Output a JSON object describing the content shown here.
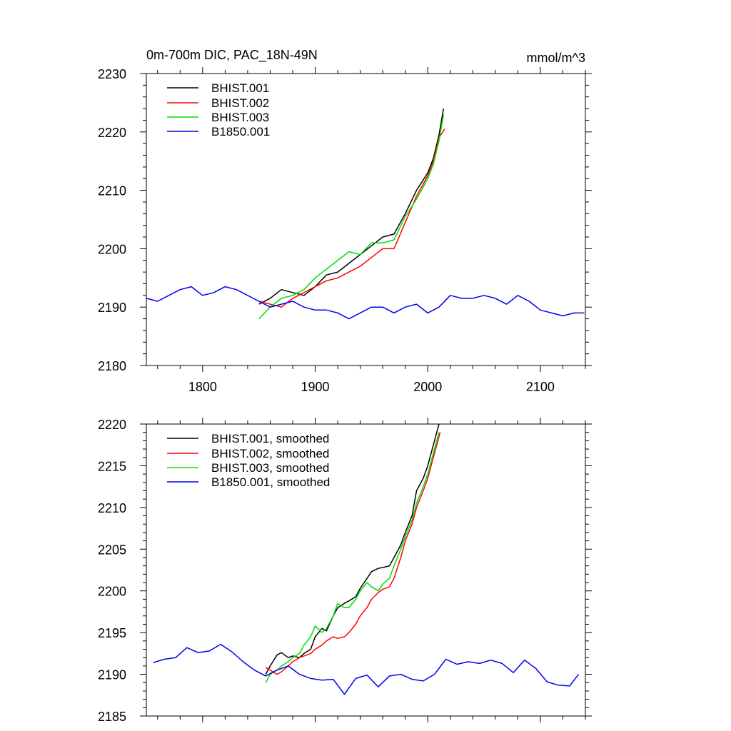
{
  "chart_data": [
    {
      "type": "line",
      "title": "0m-700m DIC, PAC_18N-49N",
      "units": "mmol/m^3",
      "xlim": [
        1750,
        2140
      ],
      "ylim": [
        2180,
        2230
      ],
      "x_ticks": [
        1800,
        1900,
        2000,
        2100
      ],
      "x_tick_labels": [
        "1800",
        "1900",
        "2000",
        "2100"
      ],
      "y_ticks": [
        2180,
        2190,
        2200,
        2210,
        2220,
        2230
      ],
      "y_tick_labels": [
        "2180",
        "2190",
        "2200",
        "2210",
        "2220",
        "2230"
      ],
      "grid": false,
      "legend_position": "top-left",
      "series": [
        {
          "name": "BHIST.001",
          "color": "#000000",
          "x": [
            1850,
            1860,
            1870,
            1880,
            1890,
            1900,
            1910,
            1920,
            1930,
            1940,
            1950,
            1960,
            1970,
            1980,
            1990,
            2000,
            2005,
            2010,
            2014
          ],
          "y": [
            2190.5,
            2191.5,
            2193.0,
            2192.5,
            2192.0,
            2193.5,
            2195.5,
            2196.0,
            2197.5,
            2199.0,
            2200.5,
            2202.0,
            2202.5,
            2206.0,
            2210.0,
            2213.0,
            2215.5,
            2219.5,
            2224.0
          ]
        },
        {
          "name": "BHIST.002",
          "color": "#ff0000",
          "x": [
            1850,
            1860,
            1870,
            1880,
            1890,
            1900,
            1910,
            1920,
            1930,
            1940,
            1950,
            1960,
            1970,
            1980,
            1990,
            2000,
            2005,
            2010,
            2015
          ],
          "y": [
            2191.0,
            2190.5,
            2190.0,
            2191.5,
            2192.5,
            2193.5,
            2194.5,
            2195.0,
            2196.0,
            2197.0,
            2198.5,
            2200.0,
            2200.0,
            2204.5,
            2209.0,
            2212.5,
            2215.0,
            2219.0,
            2220.5
          ]
        },
        {
          "name": "BHIST.003",
          "color": "#00dd00",
          "x": [
            1850,
            1860,
            1870,
            1880,
            1890,
            1900,
            1910,
            1920,
            1930,
            1940,
            1950,
            1960,
            1970,
            1980,
            1990,
            2000,
            2005,
            2010,
            2014
          ],
          "y": [
            2188.0,
            2190.0,
            2191.5,
            2192.0,
            2193.0,
            2195.0,
            2196.5,
            2198.0,
            2199.5,
            2199.0,
            2201.0,
            2201.0,
            2201.5,
            2205.5,
            2208.5,
            2212.0,
            2214.5,
            2218.5,
            2223.0
          ]
        },
        {
          "name": "B1850.001",
          "color": "#0000ee",
          "x": [
            1750,
            1760,
            1770,
            1780,
            1790,
            1800,
            1810,
            1820,
            1830,
            1840,
            1850,
            1860,
            1870,
            1880,
            1890,
            1900,
            1910,
            1920,
            1930,
            1940,
            1950,
            1960,
            1970,
            1980,
            1990,
            2000,
            2010,
            2020,
            2030,
            2040,
            2050,
            2060,
            2070,
            2080,
            2090,
            2100,
            2110,
            2120,
            2130,
            2139
          ],
          "y": [
            2191.5,
            2191.0,
            2192.0,
            2193.0,
            2193.5,
            2192.0,
            2192.5,
            2193.5,
            2193.0,
            2192.0,
            2191.0,
            2190.0,
            2190.5,
            2191.0,
            2190.0,
            2189.5,
            2189.5,
            2189.0,
            2188.0,
            2189.0,
            2190.0,
            2190.0,
            2189.0,
            2190.0,
            2190.5,
            2189.0,
            2190.0,
            2192.0,
            2191.5,
            2191.5,
            2192.0,
            2191.5,
            2190.5,
            2192.0,
            2191.0,
            2189.5,
            2189.0,
            2188.5,
            2189.0,
            2189.0
          ]
        }
      ]
    },
    {
      "type": "line",
      "xlim": [
        1750,
        2140
      ],
      "ylim": [
        2185,
        2220
      ],
      "x_ticks": [
        1800,
        1900,
        2000,
        2100
      ],
      "x_tick_labels": [],
      "y_ticks": [
        2185,
        2190,
        2195,
        2200,
        2205,
        2210,
        2215,
        2220
      ],
      "y_tick_labels": [
        "2185",
        "2190",
        "2195",
        "2200",
        "2205",
        "2210",
        "2215",
        "2220"
      ],
      "grid": false,
      "legend_position": "top-left",
      "series": [
        {
          "name": "BHIST.001, smoothed",
          "color": "#000000",
          "x": [
            1856,
            1860,
            1866,
            1870,
            1876,
            1880,
            1886,
            1890,
            1896,
            1900,
            1906,
            1910,
            1916,
            1920,
            1926,
            1930,
            1936,
            1940,
            1946,
            1950,
            1956,
            1960,
            1966,
            1970,
            1976,
            1980,
            1986,
            1990,
            1996,
            2000,
            2004,
            2008,
            2010
          ],
          "y": [
            2190.0,
            2191.0,
            2192.3,
            2192.6,
            2192.0,
            2192.2,
            2192.0,
            2192.5,
            2193.0,
            2194.5,
            2195.5,
            2195.2,
            2197.0,
            2198.0,
            2198.5,
            2198.8,
            2199.3,
            2200.3,
            2201.5,
            2202.3,
            2202.7,
            2202.8,
            2203.0,
            2204.0,
            2205.5,
            2207.0,
            2209.0,
            2212.0,
            2213.5,
            2215.0,
            2217.0,
            2219.0,
            2220.0
          ]
        },
        {
          "name": "BHIST.002, smoothed",
          "color": "#ff0000",
          "x": [
            1856,
            1860,
            1866,
            1870,
            1876,
            1880,
            1886,
            1890,
            1896,
            1900,
            1906,
            1910,
            1916,
            1920,
            1926,
            1930,
            1936,
            1940,
            1946,
            1950,
            1956,
            1960,
            1966,
            1970,
            1976,
            1980,
            1986,
            1990,
            1996,
            2000,
            2004,
            2008,
            2011
          ],
          "y": [
            2190.8,
            2190.5,
            2190.0,
            2190.3,
            2191.0,
            2191.5,
            2192.0,
            2192.2,
            2192.5,
            2193.0,
            2193.5,
            2194.0,
            2194.5,
            2194.3,
            2194.5,
            2195.0,
            2196.0,
            2197.0,
            2198.0,
            2199.0,
            2199.8,
            2200.2,
            2200.5,
            2201.5,
            2204.0,
            2206.0,
            2208.0,
            2210.0,
            2212.0,
            2213.5,
            2215.5,
            2217.5,
            2219.0
          ]
        },
        {
          "name": "BHIST.003, smoothed",
          "color": "#00dd00",
          "x": [
            1856,
            1860,
            1866,
            1870,
            1876,
            1880,
            1886,
            1890,
            1896,
            1900,
            1906,
            1910,
            1916,
            1920,
            1926,
            1930,
            1936,
            1940,
            1946,
            1950,
            1956,
            1960,
            1966,
            1970,
            1976,
            1980,
            1986,
            1990,
            1996,
            2000,
            2004,
            2008,
            2010
          ],
          "y": [
            2189.0,
            2190.0,
            2190.5,
            2191.0,
            2191.5,
            2192.0,
            2192.5,
            2193.5,
            2194.5,
            2195.8,
            2195.0,
            2195.5,
            2197.0,
            2198.5,
            2198.0,
            2198.0,
            2199.0,
            2200.0,
            2201.0,
            2200.5,
            2200.0,
            2200.8,
            2201.5,
            2203.0,
            2205.0,
            2206.5,
            2208.5,
            2210.5,
            2212.5,
            2214.0,
            2216.0,
            2218.0,
            2219.0
          ]
        },
        {
          "name": "B1850.001, smoothed",
          "color": "#0000ee",
          "x": [
            1756,
            1766,
            1776,
            1786,
            1796,
            1806,
            1816,
            1826,
            1836,
            1846,
            1856,
            1866,
            1876,
            1886,
            1896,
            1906,
            1916,
            1926,
            1936,
            1946,
            1956,
            1966,
            1976,
            1986,
            1996,
            2006,
            2016,
            2026,
            2036,
            2046,
            2056,
            2066,
            2076,
            2086,
            2096,
            2106,
            2116,
            2126,
            2134
          ],
          "y": [
            2191.4,
            2191.8,
            2192.0,
            2193.2,
            2192.6,
            2192.8,
            2193.6,
            2192.7,
            2191.5,
            2190.5,
            2189.8,
            2190.5,
            2191.0,
            2190.0,
            2189.5,
            2189.3,
            2189.4,
            2187.6,
            2189.5,
            2189.9,
            2188.5,
            2189.8,
            2190.0,
            2189.4,
            2189.2,
            2190.0,
            2191.8,
            2191.2,
            2191.5,
            2191.3,
            2191.7,
            2191.3,
            2190.2,
            2191.7,
            2190.7,
            2189.1,
            2188.7,
            2188.6,
            2190.0
          ]
        }
      ]
    }
  ]
}
